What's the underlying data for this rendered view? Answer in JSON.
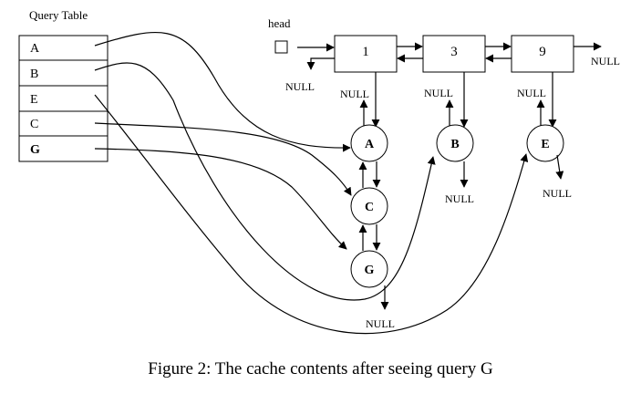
{
  "query_table": {
    "title": "Query Table",
    "rows": [
      "A",
      "B",
      "E",
      "C",
      "G"
    ],
    "bold_rows": [
      "G"
    ]
  },
  "linked_list": {
    "head_label": "head",
    "nodes": [
      "1",
      "3",
      "9"
    ],
    "end_label": "NULL",
    "prev_null_label": "NULL",
    "null_labels": [
      "NULL",
      "NULL",
      "NULL"
    ]
  },
  "chains": [
    {
      "nodes": [
        "A",
        "C",
        "G"
      ],
      "end_label": "NULL"
    },
    {
      "nodes": [
        "B"
      ],
      "end_label": "NULL"
    },
    {
      "nodes": [
        "E"
      ],
      "end_label": "NULL"
    }
  ],
  "caption": "Figure 2:  The cache contents after seeing query G"
}
